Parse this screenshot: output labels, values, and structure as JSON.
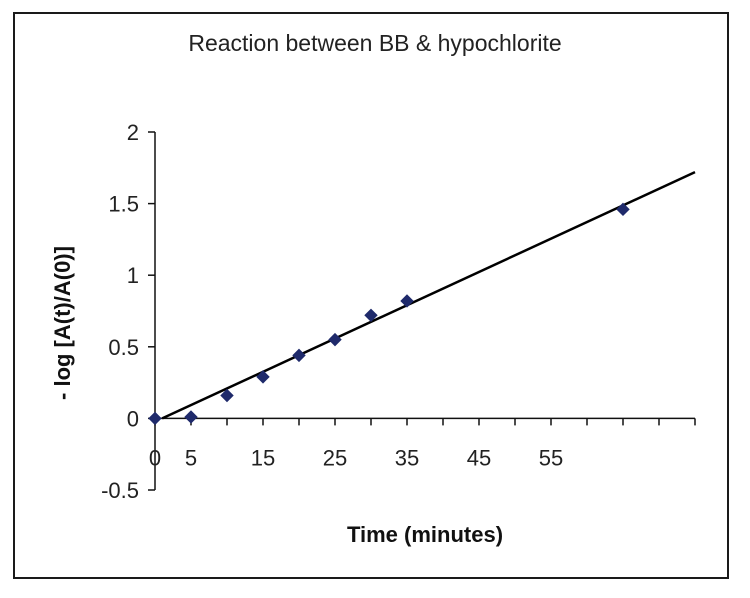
{
  "chart_data": {
    "type": "scatter",
    "title": "Reaction between BB & hypochlorite",
    "xlabel": "Time (minutes)",
    "ylabel": "- log [A(t)/A(0)]",
    "xlim": [
      0,
      75
    ],
    "ylim": [
      -0.5,
      2
    ],
    "x_tick_labels": [
      "0",
      "5",
      "15",
      "25",
      "35",
      "45",
      "55"
    ],
    "x_tick_label_values": [
      0,
      5,
      15,
      25,
      35,
      45,
      55
    ],
    "x_ticks_minor": [
      0,
      5,
      10,
      15,
      20,
      25,
      30,
      35,
      40,
      45,
      50,
      55,
      60,
      65,
      70,
      75
    ],
    "y_ticks": [
      -0.5,
      0,
      0.5,
      1,
      1.5,
      2
    ],
    "y_tick_labels": [
      "-0.5",
      "0",
      "0.5",
      "1",
      "1.5",
      "2"
    ],
    "grid": false,
    "series": [
      {
        "type": "scatter",
        "marker": "diamond",
        "color": "#1f2a6b",
        "points": [
          {
            "x": 0,
            "y": 0.0
          },
          {
            "x": 5,
            "y": 0.01
          },
          {
            "x": 10,
            "y": 0.16
          },
          {
            "x": 15,
            "y": 0.29
          },
          {
            "x": 20,
            "y": 0.44
          },
          {
            "x": 25,
            "y": 0.55
          },
          {
            "x": 30,
            "y": 0.72
          },
          {
            "x": 35,
            "y": 0.82
          },
          {
            "x": 65,
            "y": 1.46
          }
        ]
      },
      {
        "type": "line",
        "color": "#000000",
        "points": [
          {
            "x": 1,
            "y": 0.0
          },
          {
            "x": 75,
            "y": 1.72
          }
        ]
      }
    ]
  }
}
